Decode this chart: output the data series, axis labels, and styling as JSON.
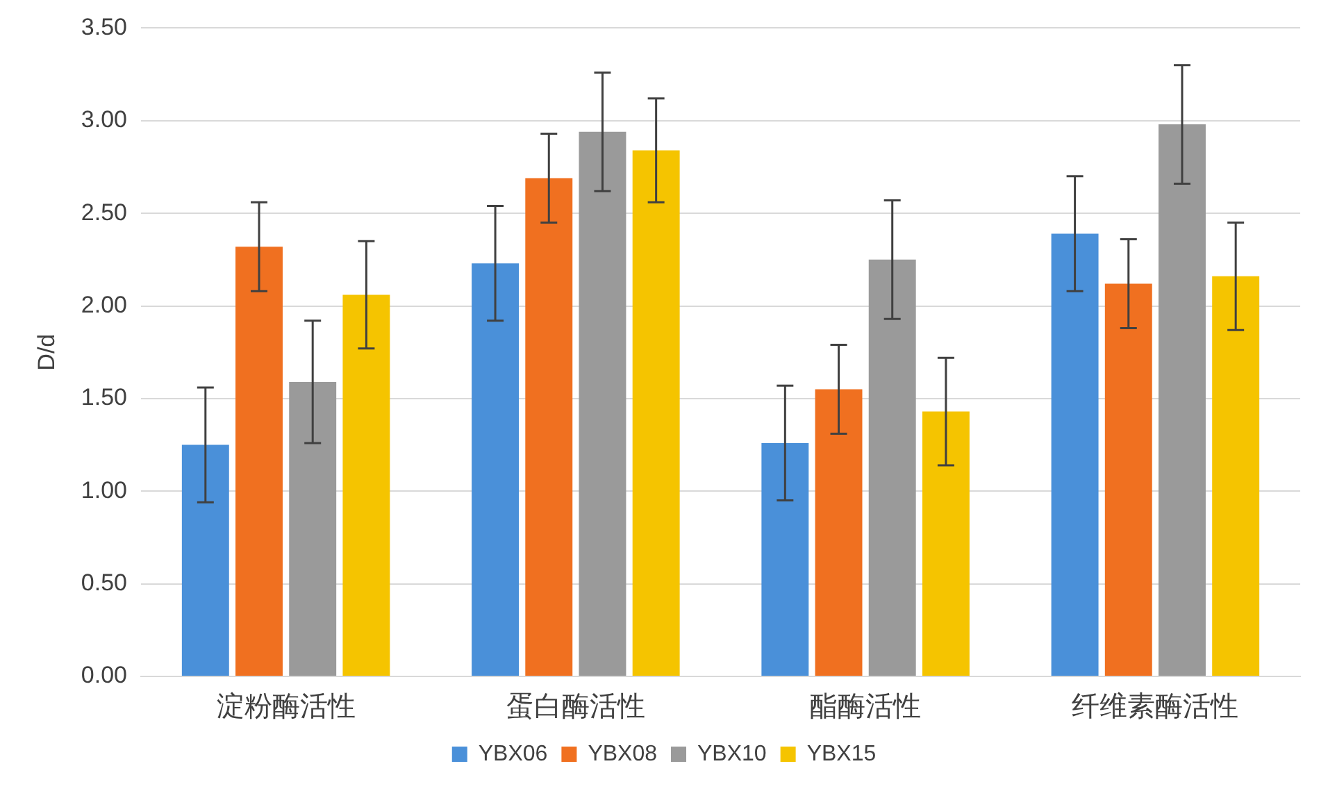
{
  "chart_data": {
    "type": "bar",
    "ylabel": "D/d",
    "categories": [
      "淀粉酶活性",
      "蛋白酶活性",
      "酯酶活性",
      "纤维素酶活性"
    ],
    "series": [
      {
        "name": "YBX06",
        "color": "#4a90d9",
        "values": [
          1.25,
          2.23,
          1.26,
          2.39
        ],
        "errors": [
          0.31,
          0.31,
          0.31,
          0.31
        ]
      },
      {
        "name": "YBX08",
        "color": "#f07020",
        "values": [
          2.32,
          2.69,
          1.55,
          2.12
        ],
        "errors": [
          0.24,
          0.24,
          0.24,
          0.24
        ]
      },
      {
        "name": "YBX10",
        "color": "#9a9a9a",
        "values": [
          1.59,
          2.94,
          2.25,
          2.98
        ],
        "errors": [
          0.33,
          0.32,
          0.32,
          0.32
        ]
      },
      {
        "name": "YBX15",
        "color": "#f5c400",
        "values": [
          2.06,
          2.84,
          1.43,
          2.16
        ],
        "errors": [
          0.29,
          0.28,
          0.29,
          0.29
        ]
      }
    ],
    "ylim": [
      0,
      3.5
    ],
    "yticks": [
      {
        "value": 0,
        "label": "0.00"
      },
      {
        "value": 0.5,
        "label": "0.50"
      },
      {
        "value": 1,
        "label": "1.00"
      },
      {
        "value": 1.5,
        "label": "1.50"
      },
      {
        "value": 2,
        "label": "2.00"
      },
      {
        "value": 2.5,
        "label": "2.50"
      },
      {
        "value": 3,
        "label": "3.00"
      },
      {
        "value": 3.5,
        "label": "3.50"
      }
    ],
    "grid": "y",
    "legend": "bottom"
  }
}
